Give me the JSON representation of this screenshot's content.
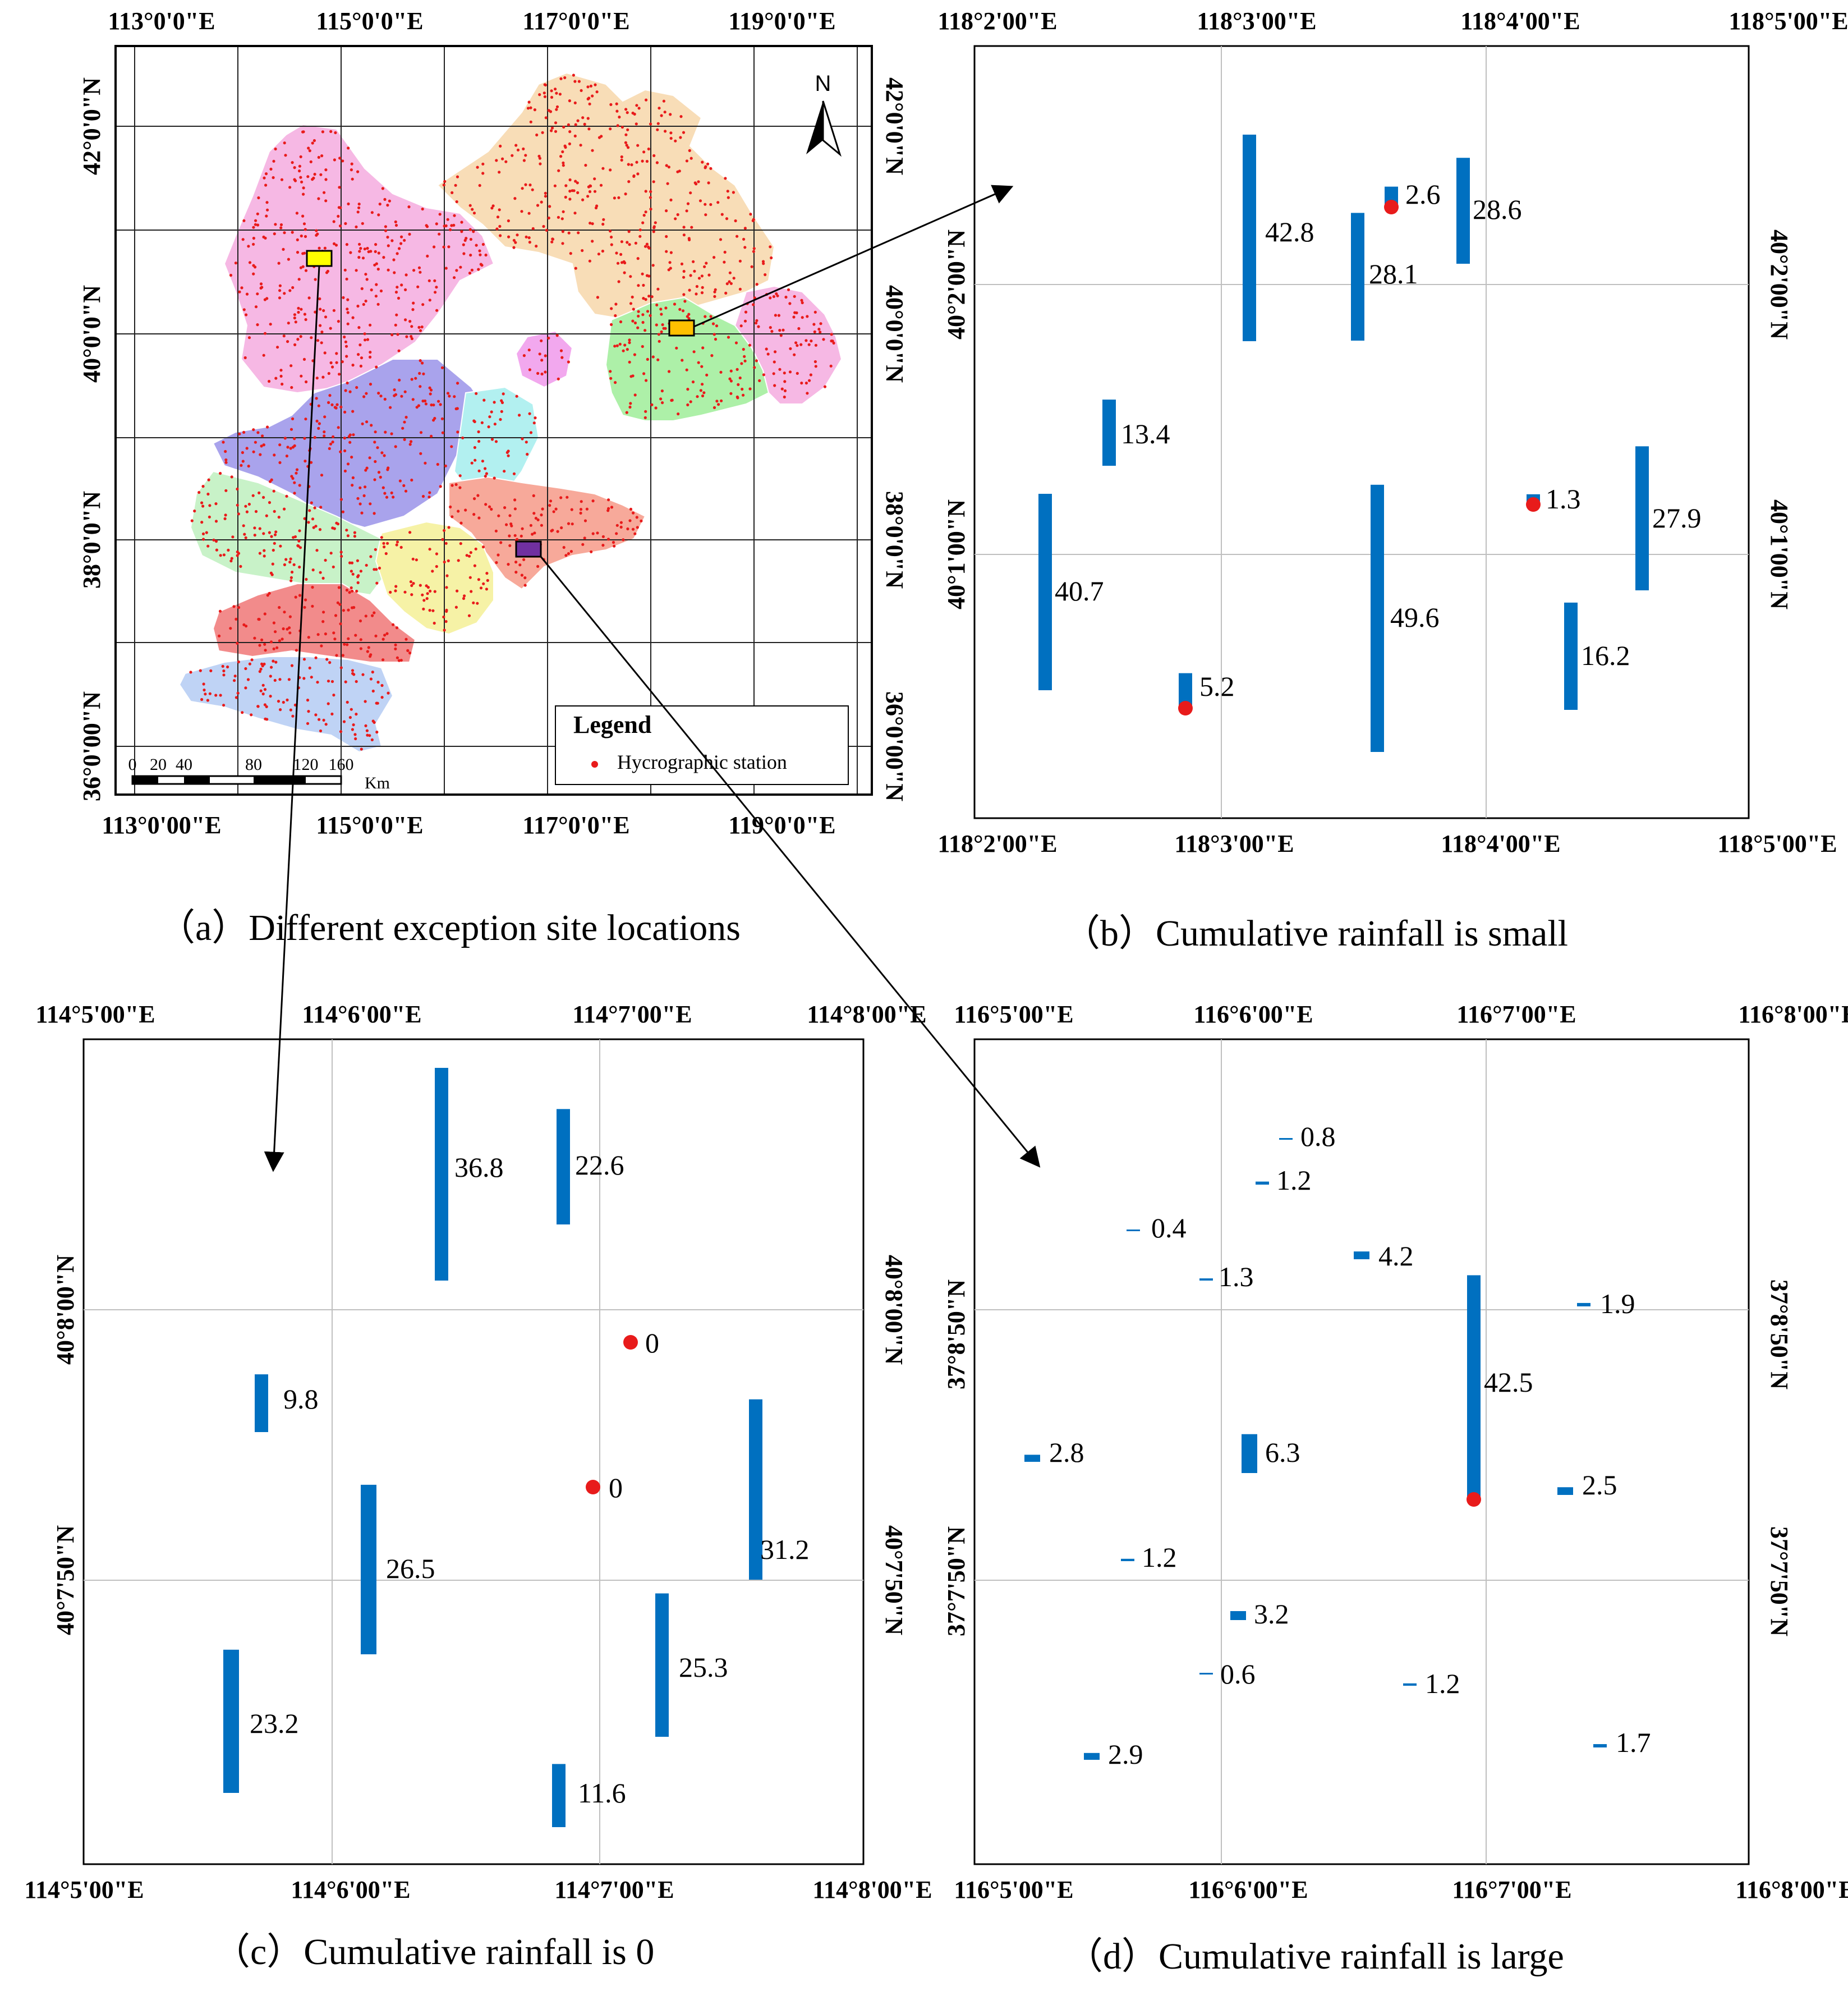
{
  "colors": {
    "bar": "#0070C0",
    "station": "#E81B1B",
    "grid": "#BFBFBF",
    "frame": "#000000",
    "site_yellow": "#FFFF00",
    "site_orange": "#FFC000",
    "site_purple": "#7030A0"
  },
  "panel_a": {
    "caption": "（a）Different exception site locations",
    "top_labels": [
      "113°0'0\"E",
      "115°0'0\"E",
      "117°0'0\"E",
      "119°0'0\"E"
    ],
    "bottom_labels": [
      "113°0'00\"E",
      "115°0'0\"E",
      "117°0'0\"E",
      "119°0'0\"E"
    ],
    "left_labels": [
      "42°0'0\"N",
      "40°0'0\"N",
      "38°0'0\"N",
      "36°0'00\"N"
    ],
    "right_labels": [
      "42°0'0\"N",
      "40°0'0\"N",
      "38°0'0\"N",
      "36°0'00\"N"
    ],
    "north": "N",
    "legend_title": "Legend",
    "legend_item": "Hycrographic station",
    "scale_ticks": [
      "0",
      "20",
      "40",
      "80",
      "120",
      "160"
    ],
    "scale_unit": "Km",
    "region_colors": [
      "#F6B8E4",
      "#F8DDB7",
      "#F2A8EE",
      "#A9A3EC",
      "#B2F0F0",
      "#C8F2C8",
      "#F7A99A",
      "#F6F2A6",
      "#F28B8B",
      "#BFD3F5",
      "#ADF0A8"
    ]
  },
  "panel_b": {
    "caption": "（b）Cumulative rainfall is small",
    "top_labels": [
      "118°2'00\"E",
      "118°3'00\"E",
      "118°4'00\"E",
      "118°5'00\"E"
    ],
    "bottom_labels": [
      "118°2'00\"E",
      "118°3'00\"E",
      "118°4'00\"E",
      "118°5'00\"E"
    ],
    "left_labels": [
      "40°2'00\"N",
      "40°1'00\"N"
    ],
    "right_labels": [
      "40°2'00\"N",
      "40°1'00\"N"
    ],
    "bars": [
      {
        "value": 42.8,
        "label": "42.8"
      },
      {
        "value": 2.6,
        "label": "2.6"
      },
      {
        "value": 28.6,
        "label": "28.6"
      },
      {
        "value": 28.1,
        "label": "28.1"
      },
      {
        "value": 13.4,
        "label": "13.4"
      },
      {
        "value": 40.7,
        "label": "40.7"
      },
      {
        "value": 49.6,
        "label": "49.6"
      },
      {
        "value": 1.3,
        "label": "1.3"
      },
      {
        "value": 27.9,
        "label": "27.9"
      },
      {
        "value": 16.2,
        "label": "16.2"
      },
      {
        "value": 5.2,
        "label": "5.2"
      }
    ]
  },
  "panel_c": {
    "caption": "（c）Cumulative rainfall is 0",
    "top_labels": [
      "114°5'00\"E",
      "114°6'00\"E",
      "114°7'00\"E",
      "114°8'00\"E"
    ],
    "bottom_labels": [
      "114°5'00\"E",
      "114°6'00\"E",
      "114°7'00\"E",
      "114°8'00\"E"
    ],
    "left_labels": [
      "40°8'00\"N",
      "40°7'50\"N"
    ],
    "right_labels": [
      "40°8'00\"N",
      "40°7'50\"N"
    ],
    "bars": [
      {
        "value": 36.8,
        "label": "36.8"
      },
      {
        "value": 22.6,
        "label": "22.6"
      },
      {
        "value": 0,
        "label": "0"
      },
      {
        "value": 9.8,
        "label": "9.8"
      },
      {
        "value": 0,
        "label": "0"
      },
      {
        "value": 31.2,
        "label": "31.2"
      },
      {
        "value": 26.5,
        "label": "26.5"
      },
      {
        "value": 25.3,
        "label": "25.3"
      },
      {
        "value": 23.2,
        "label": "23.2"
      },
      {
        "value": 11.6,
        "label": "11.6"
      }
    ]
  },
  "panel_d": {
    "caption": "（d）Cumulative rainfall is large",
    "top_labels": [
      "116°5'00\"E",
      "116°6'00\"E",
      "116°7'00\"E",
      "116°8'00\"E"
    ],
    "bottom_labels": [
      "116°5'00\"E",
      "116°6'00\"E",
      "116°7'00\"E",
      "116°8'00\"E"
    ],
    "left_labels": [
      "37°8'50\"N",
      "37°7'50\"N"
    ],
    "right_labels": [
      "37°8'50\"N",
      "37°7'50\"N"
    ],
    "bars": [
      {
        "value": 0.8,
        "label": "0.8"
      },
      {
        "value": 1.2,
        "label": "1.2"
      },
      {
        "value": 0.4,
        "label": "0.4"
      },
      {
        "value": 4.2,
        "label": "4.2"
      },
      {
        "value": 1.3,
        "label": "1.3"
      },
      {
        "value": 1.9,
        "label": "1.9"
      },
      {
        "value": 42.5,
        "label": "42.5"
      },
      {
        "value": 2.8,
        "label": "2.8"
      },
      {
        "value": 6.3,
        "label": "6.3"
      },
      {
        "value": 2.5,
        "label": "2.5"
      },
      {
        "value": 1.2,
        "label": "1.2"
      },
      {
        "value": 3.2,
        "label": "3.2"
      },
      {
        "value": 0.6,
        "label": "0.6"
      },
      {
        "value": 1.2,
        "label": "1.2"
      },
      {
        "value": 2.9,
        "label": "2.9"
      },
      {
        "value": 1.7,
        "label": "1.7"
      }
    ]
  }
}
